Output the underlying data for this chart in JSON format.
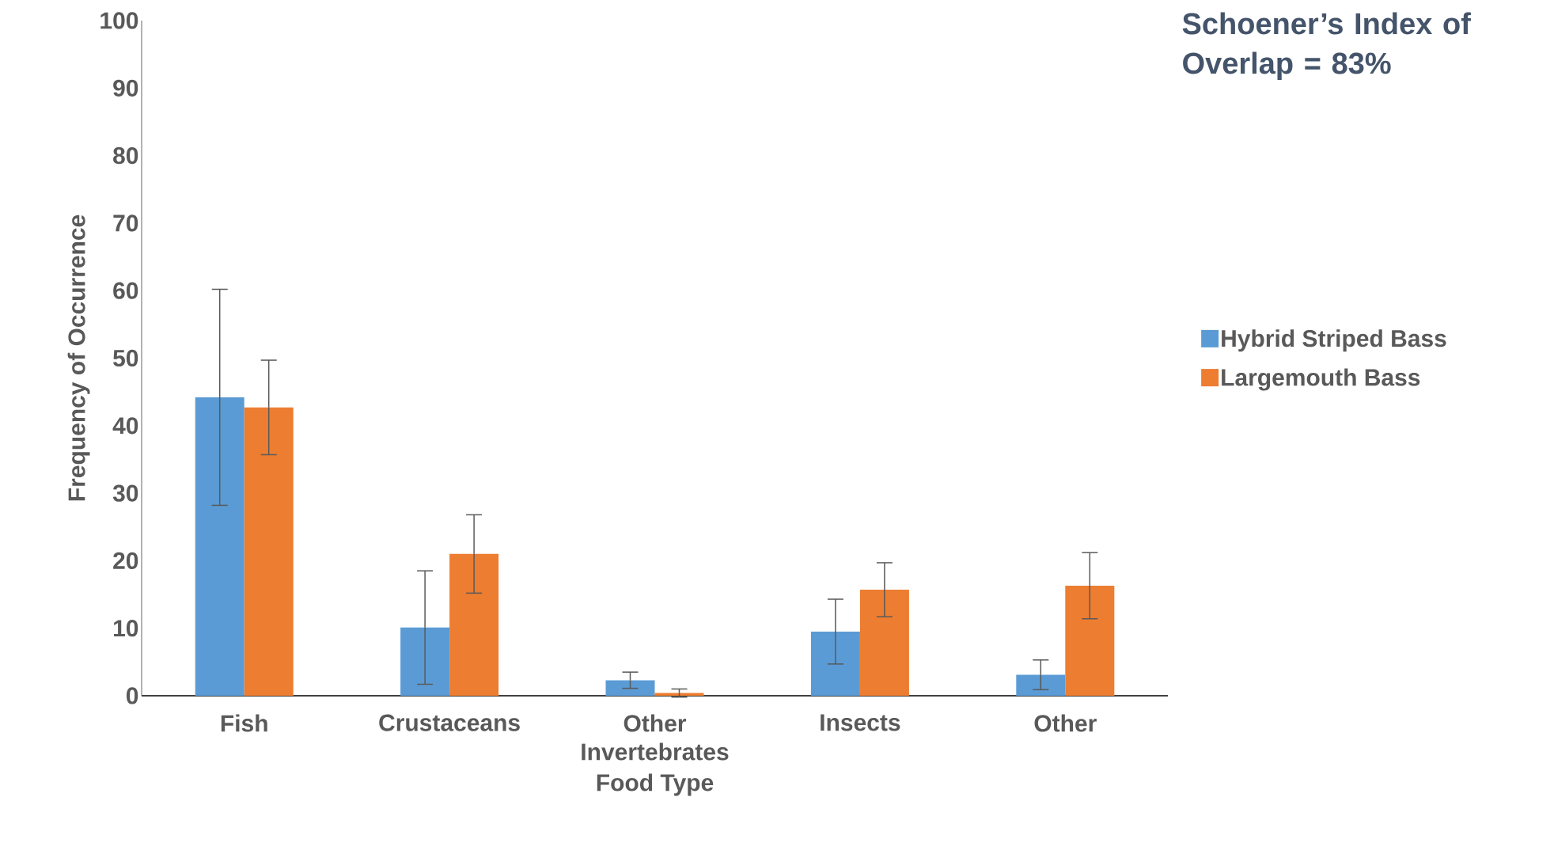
{
  "chart_data": {
    "type": "bar",
    "xlabel": "Food Type",
    "ylabel": "Frequency of Occurrence",
    "categories": [
      "Fish",
      "Crustaceans",
      "Other Invertebrates",
      "Insects",
      "Other"
    ],
    "series": [
      {
        "name": "Hybrid Striped Bass",
        "color": "#5b9bd5",
        "values": [
          44.2,
          10.1,
          2.3,
          9.5,
          3.1
        ],
        "errors": [
          16,
          8.4,
          1.2,
          4.8,
          2.2
        ]
      },
      {
        "name": "Largemouth Bass",
        "color": "#ed7d31",
        "values": [
          42.7,
          21.0,
          0.4,
          15.7,
          16.3
        ],
        "errors": [
          7,
          5.8,
          0.6,
          4,
          4.9
        ]
      }
    ],
    "ylim": [
      0,
      100
    ],
    "yticks": [
      0,
      10,
      20,
      30,
      40,
      50,
      60,
      70,
      80,
      90,
      100
    ],
    "grid": false,
    "legend": "right",
    "annotations": [
      "Schoener’s Index of Overlap = 83%"
    ]
  }
}
